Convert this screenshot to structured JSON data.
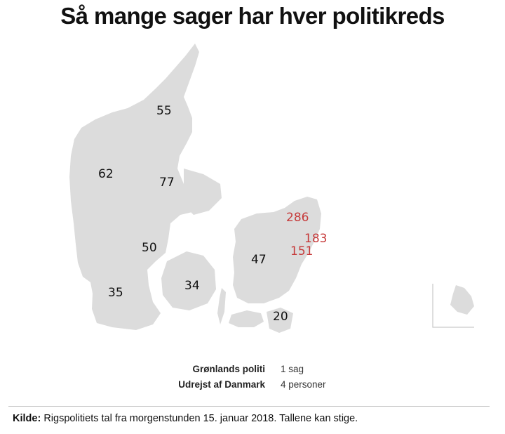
{
  "title": "Så mange sager har hver politikreds",
  "colors": {
    "land": "#dcdcdc",
    "highlight": "#c63a3a",
    "text": "#111111"
  },
  "districts": [
    {
      "id": "nordjylland",
      "value": "55",
      "highlight": false
    },
    {
      "id": "midt-vestjylland",
      "value": "62",
      "highlight": false
    },
    {
      "id": "oestjylland",
      "value": "77",
      "highlight": false
    },
    {
      "id": "sydoestjylland",
      "value": "50",
      "highlight": false
    },
    {
      "id": "syd-soenderjylland",
      "value": "35",
      "highlight": false
    },
    {
      "id": "fyn",
      "value": "34",
      "highlight": false
    },
    {
      "id": "midt-vestsjaelland",
      "value": "47",
      "highlight": false
    },
    {
      "id": "nordsjaelland",
      "value": "286",
      "highlight": true
    },
    {
      "id": "koebenhavn",
      "value": "183",
      "highlight": true
    },
    {
      "id": "koebenhavns-vestegn",
      "value": "151",
      "highlight": true
    },
    {
      "id": "sydsjaelland-lolland-falster",
      "value": "20",
      "highlight": false
    }
  ],
  "notes": [
    {
      "name": "Grønlands politi",
      "value": "1 sag"
    },
    {
      "name": "Udrejst af Danmark",
      "value": "4 personer"
    }
  ],
  "source": {
    "label": "Kilde:",
    "text": "Rigspolitiets tal fra morgenstunden 15. januar 2018. Tallene kan stige."
  }
}
